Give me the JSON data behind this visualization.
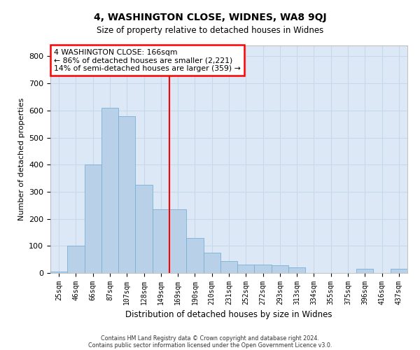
{
  "title": "4, WASHINGTON CLOSE, WIDNES, WA8 9QJ",
  "subtitle": "Size of property relative to detached houses in Widnes",
  "xlabel": "Distribution of detached houses by size in Widnes",
  "ylabel": "Number of detached properties",
  "footer_line1": "Contains HM Land Registry data © Crown copyright and database right 2024.",
  "footer_line2": "Contains public sector information licensed under the Open Government Licence v3.0.",
  "bar_labels": [
    "25sqm",
    "46sqm",
    "66sqm",
    "87sqm",
    "107sqm",
    "128sqm",
    "149sqm",
    "169sqm",
    "190sqm",
    "210sqm",
    "231sqm",
    "252sqm",
    "272sqm",
    "293sqm",
    "313sqm",
    "334sqm",
    "355sqm",
    "375sqm",
    "396sqm",
    "416sqm",
    "437sqm"
  ],
  "bar_values": [
    5,
    100,
    400,
    610,
    580,
    325,
    235,
    235,
    130,
    75,
    45,
    30,
    30,
    28,
    20,
    0,
    0,
    0,
    15,
    0,
    15
  ],
  "bar_color": "#b8d0e8",
  "bar_edge_color": "#7aafd4",
  "red_line_index": 7,
  "ylim": [
    0,
    840
  ],
  "yticks": [
    0,
    100,
    200,
    300,
    400,
    500,
    600,
    700,
    800
  ],
  "annotation_title": "4 WASHINGTON CLOSE: 166sqm",
  "annotation_line1": "← 86% of detached houses are smaller (2,221)",
  "annotation_line2": "14% of semi-detached houses are larger (359) →",
  "bg_color": "#dce8f5",
  "grid_color": "#c8d8ec",
  "title_fontsize": 10,
  "subtitle_fontsize": 8.5
}
